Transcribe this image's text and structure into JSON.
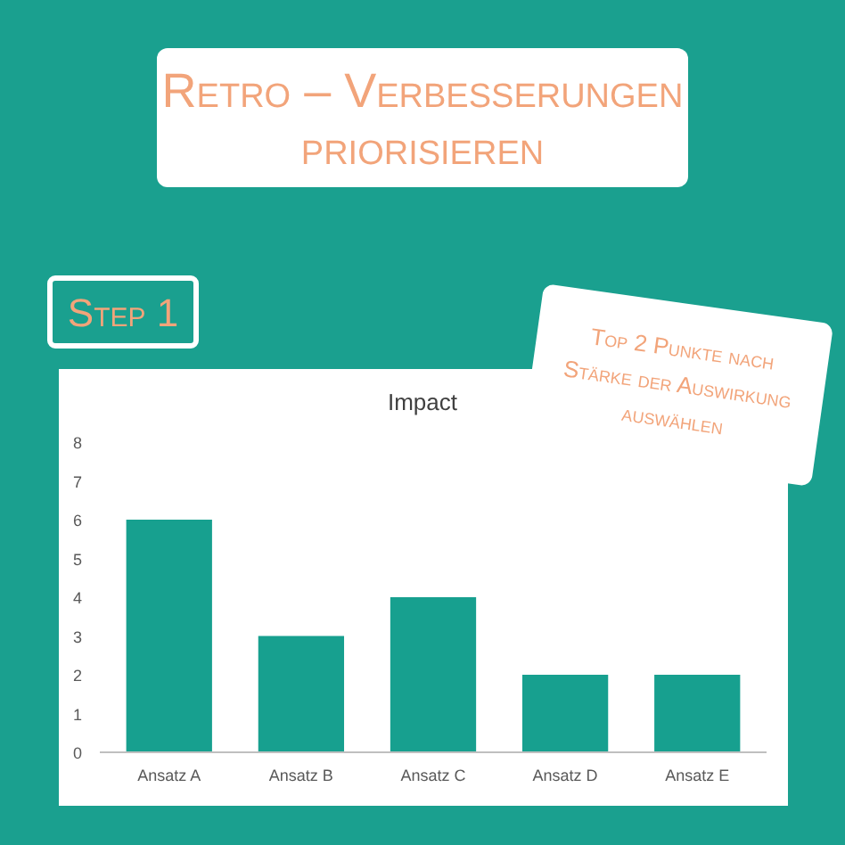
{
  "chart_data": {
    "type": "bar",
    "title": "Impact",
    "annotations": [
      "Retro – Verbesserungen priorisieren",
      "Step 1",
      "Top 2 Punkte nach Stärke der Auswirkung auswählen"
    ],
    "categories": [
      "Ansatz A",
      "Ansatz B",
      "Ansatz C",
      "Ansatz D",
      "Ansatz E"
    ],
    "values": [
      6,
      3,
      4,
      2,
      2
    ],
    "color": "#17a08f",
    "ylim": [
      0,
      8
    ],
    "yticks": [
      0,
      1,
      2,
      3,
      4,
      5,
      6,
      7,
      8
    ],
    "grid": false
  }
}
